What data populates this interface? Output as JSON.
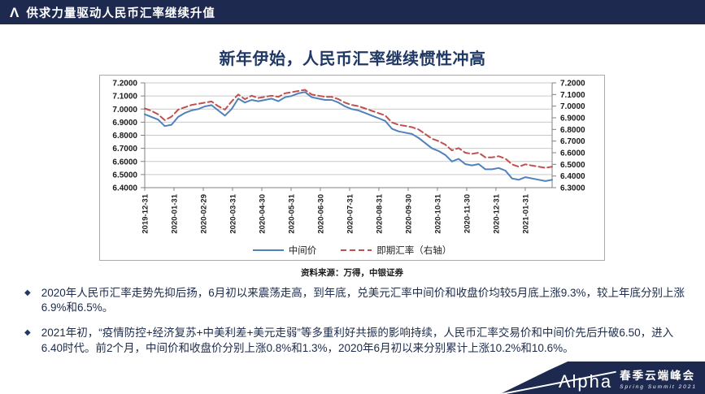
{
  "header": {
    "title": "供求力量驱动人民币汇率继续升值",
    "logo_icon": "Λ"
  },
  "slide": {
    "title": "新年伊始，人民币汇率继续惯性冲高"
  },
  "chart": {
    "source": "资料来源：万得，中银证券"
  },
  "chart_data": {
    "type": "line",
    "title": "",
    "xlabel": "",
    "ylabel": "",
    "grid": true,
    "legend_position": "bottom",
    "x_tick_labels": [
      "2019-12-31",
      "2020-01-31",
      "2020-02-29",
      "2020-03-31",
      "2020-04-30",
      "2020-05-31",
      "2020-06-30",
      "2020-07-31",
      "2020-08-31",
      "2020-09-30",
      "2020-10-31",
      "2020-11-30",
      "2020-12-31",
      "2021-01-31"
    ],
    "left_axis": {
      "min": 6.4,
      "max": 7.2,
      "tick_labels": [
        "7.2000",
        "7.1000",
        "7.0000",
        "6.9000",
        "6.8000",
        "6.7000",
        "6.6000",
        "6.5000",
        "6.4000"
      ]
    },
    "right_axis": {
      "min": 6.3,
      "max": 7.2,
      "tick_labels": [
        "7.2000",
        "7.1000",
        "7.0000",
        "6.9000",
        "6.8000",
        "6.7000",
        "6.6000",
        "6.5000",
        "6.4000",
        "6.3000"
      ]
    },
    "series": [
      {
        "name": "中间价",
        "axis": "left",
        "color": "#4f81bd",
        "style": "solid",
        "values": [
          6.96,
          6.94,
          6.92,
          6.87,
          6.88,
          6.94,
          6.97,
          6.99,
          7.0,
          7.02,
          7.03,
          6.99,
          6.95,
          7.0,
          7.08,
          7.05,
          7.07,
          7.06,
          7.07,
          7.08,
          7.06,
          7.09,
          7.1,
          7.12,
          7.13,
          7.09,
          7.08,
          7.07,
          7.07,
          7.05,
          7.02,
          7.0,
          6.99,
          6.97,
          6.95,
          6.93,
          6.91,
          6.85,
          6.83,
          6.82,
          6.81,
          6.78,
          6.74,
          6.7,
          6.68,
          6.65,
          6.6,
          6.62,
          6.58,
          6.57,
          6.58,
          6.54,
          6.54,
          6.55,
          6.53,
          6.47,
          6.46,
          6.48,
          6.47,
          6.46,
          6.45,
          6.46
        ]
      },
      {
        "name": "即期汇率（右轴）",
        "axis": "right",
        "color": "#c0504d",
        "style": "dashed",
        "values": [
          6.98,
          6.96,
          6.93,
          6.88,
          6.91,
          6.97,
          6.99,
          7.01,
          7.02,
          7.03,
          7.04,
          7.0,
          6.97,
          7.04,
          7.1,
          7.06,
          7.09,
          7.07,
          7.08,
          7.09,
          7.08,
          7.11,
          7.12,
          7.13,
          7.14,
          7.1,
          7.09,
          7.08,
          7.08,
          7.06,
          7.03,
          7.01,
          7.0,
          6.98,
          6.96,
          6.94,
          6.92,
          6.86,
          6.84,
          6.83,
          6.82,
          6.8,
          6.76,
          6.72,
          6.7,
          6.67,
          6.62,
          6.64,
          6.6,
          6.59,
          6.6,
          6.56,
          6.56,
          6.57,
          6.55,
          6.5,
          6.48,
          6.5,
          6.49,
          6.48,
          6.47,
          6.48
        ]
      }
    ]
  },
  "bullets": [
    "2020年人民币汇率走势先抑后扬，6月初以来震荡走高，到年底，兑美元汇率中间价和收盘价均较5月底上涨9.3%，较上年底分别上涨6.9%和6.5%。",
    "2021年初，“疫情防控+经济复苏+中美利差+美元走弱”等多重利好共振的影响持续，人民币汇率交易价和中间价先后升破6.50，进入6.40时代。前2个月，中间价和收盘价分别上涨0.8%和1.3%，2020年6月初以来分别累计上涨10.2%和10.6%。"
  ],
  "footer": {
    "brand": "Λlpha",
    "event": "春季云端峰会",
    "subtitle": "Spring Summit 2021"
  },
  "colors": {
    "header_navy": "#1e2950",
    "title_navy": "#1f3864",
    "bullet_marker_navy": "#1f3864",
    "line_blue": "#4f81bd",
    "line_red": "#c0504d",
    "grid_gray": "#c9c9c9",
    "axis_gray": "#808080"
  }
}
